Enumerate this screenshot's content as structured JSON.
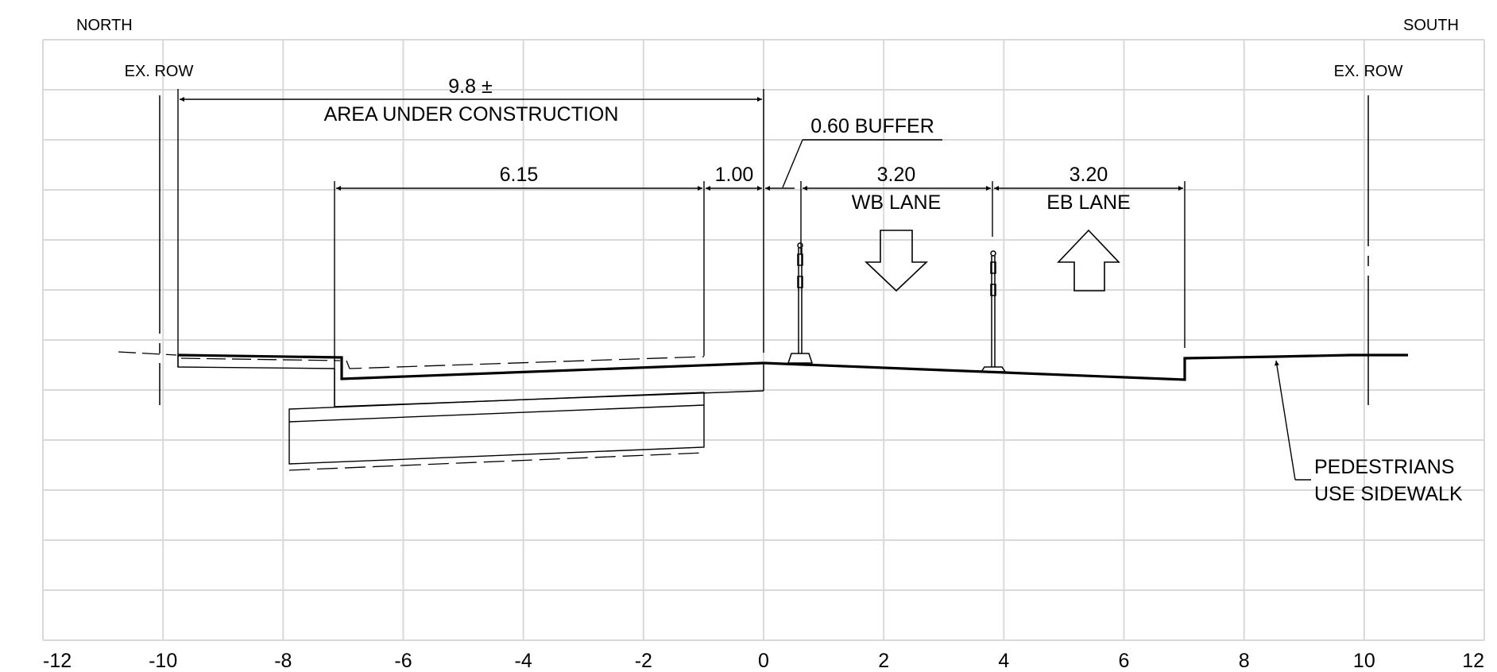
{
  "header": {
    "left_label": "NORTH",
    "right_label": "SOUTH"
  },
  "x_axis": {
    "ticks": [
      "-12",
      "-10",
      "-8",
      "-6",
      "-4",
      "-2",
      "0",
      "2",
      "4",
      "6",
      "8",
      "10",
      "12"
    ]
  },
  "row_lines": {
    "left_label": "EX. ROW",
    "right_label": "EX. ROW"
  },
  "dimensions": {
    "construction_width": "9.8 ±",
    "construction_label": "AREA UNDER CONSTRUCTION",
    "excavation_width": "6.15",
    "offset_width": "1.00",
    "buffer_label": "0.60 BUFFER",
    "wb_width": "3.20",
    "wb_label": "WB LANE",
    "eb_width": "3.20",
    "eb_label": "EB LANE"
  },
  "callouts": {
    "pedestrian_line1": "PEDESTRIANS",
    "pedestrian_line2": "USE SIDEWALK"
  },
  "colors": {
    "grid": "#d9d9d9",
    "line": "#000000"
  },
  "icons": {
    "wb_arrow": "arrow-down-icon",
    "eb_arrow": "arrow-up-icon",
    "delineator": "delineator-post-icon"
  }
}
